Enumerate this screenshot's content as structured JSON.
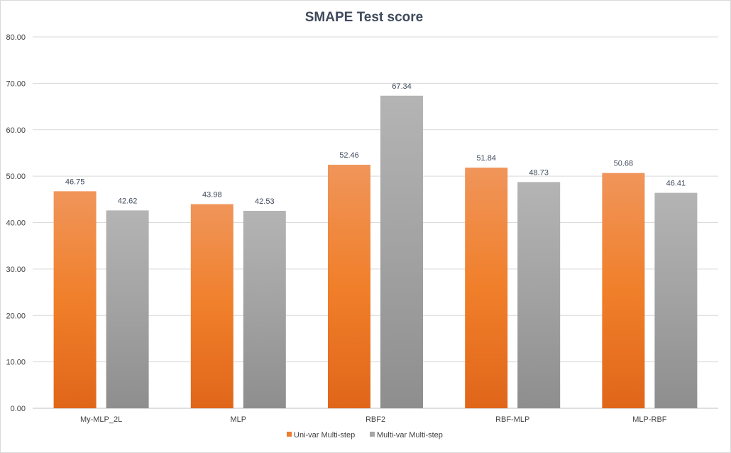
{
  "chart_data": {
    "type": "bar",
    "title": "SMAPE Test score",
    "xlabel": "",
    "ylabel": "",
    "ylim": [
      0,
      80
    ],
    "yticks": [
      "0.00",
      "10.00",
      "20.00",
      "30.00",
      "40.00",
      "50.00",
      "60.00",
      "70.00",
      "80.00"
    ],
    "grid": true,
    "legend_position": "bottom",
    "categories": [
      "My-MLP_2L",
      "MLP",
      "RBF2",
      "RBF-MLP",
      "MLP-RBF"
    ],
    "series": [
      {
        "name": "Uni-var Multi-step",
        "values": [
          46.75,
          43.98,
          52.46,
          51.84,
          50.68
        ],
        "labels": [
          "46.75",
          "43.98",
          "52.46",
          "51.84",
          "50.68"
        ],
        "color": "#ed7d31"
      },
      {
        "name": "Multi-var Multi-step",
        "values": [
          42.62,
          42.53,
          67.34,
          48.73,
          46.41
        ],
        "labels": [
          "42.62",
          "42.53",
          "67.34",
          "48.73",
          "46.41"
        ],
        "color": "#a5a5a5"
      }
    ]
  }
}
